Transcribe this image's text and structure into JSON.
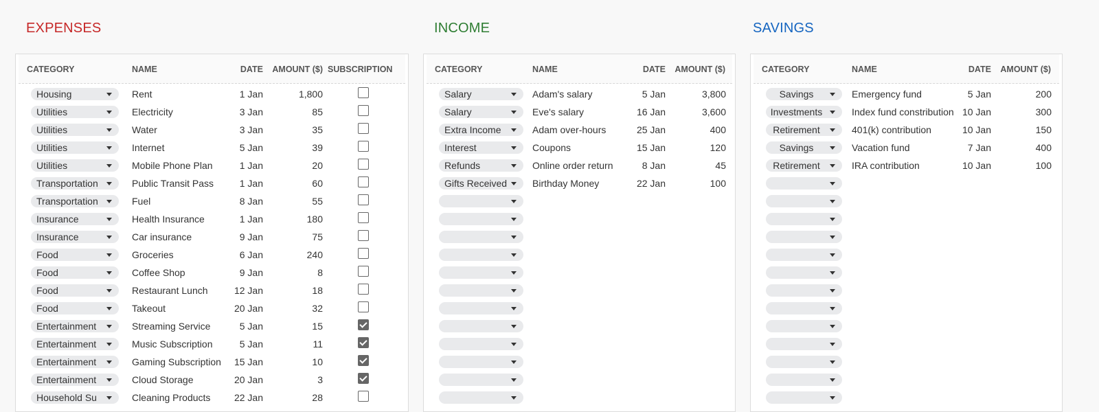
{
  "colors": {
    "expenses": "#c62828",
    "income": "#2e7d32",
    "savings": "#1565c0"
  },
  "expenses": {
    "title": "EXPENSES",
    "headers": {
      "category": "CATEGORY",
      "name": "NAME",
      "date": "DATE",
      "amount": "AMOUNT ($)",
      "subscription": "SUBSCRIPTION"
    },
    "rows": [
      {
        "category": "Housing",
        "name": "Rent",
        "date": "1 Jan",
        "amount": "1,800",
        "subscription": false
      },
      {
        "category": "Utilities",
        "name": "Electricity",
        "date": "3 Jan",
        "amount": "85",
        "subscription": false
      },
      {
        "category": "Utilities",
        "name": "Water",
        "date": "3 Jan",
        "amount": "35",
        "subscription": false
      },
      {
        "category": "Utilities",
        "name": "Internet",
        "date": "5 Jan",
        "amount": "39",
        "subscription": false
      },
      {
        "category": "Utilities",
        "name": "Mobile Phone Plan",
        "date": "1 Jan",
        "amount": "20",
        "subscription": false
      },
      {
        "category": "Transportation",
        "name": "Public Transit Pass",
        "date": "1 Jan",
        "amount": "60",
        "subscription": false
      },
      {
        "category": "Transportation",
        "name": "Fuel",
        "date": "8 Jan",
        "amount": "55",
        "subscription": false
      },
      {
        "category": "Insurance",
        "name": "Health Insurance",
        "date": "1 Jan",
        "amount": "180",
        "subscription": false
      },
      {
        "category": "Insurance",
        "name": "Car insurance",
        "date": "9 Jan",
        "amount": "75",
        "subscription": false
      },
      {
        "category": "Food",
        "name": "Groceries",
        "date": "6 Jan",
        "amount": "240",
        "subscription": false
      },
      {
        "category": "Food",
        "name": "Coffee Shop",
        "date": "9 Jan",
        "amount": "8",
        "subscription": false
      },
      {
        "category": "Food",
        "name": "Restaurant Lunch",
        "date": "12 Jan",
        "amount": "18",
        "subscription": false
      },
      {
        "category": "Food",
        "name": "Takeout",
        "date": "20 Jan",
        "amount": "32",
        "subscription": false
      },
      {
        "category": "Entertainment",
        "name": "Streaming Service",
        "date": "5 Jan",
        "amount": "15",
        "subscription": true
      },
      {
        "category": "Entertainment",
        "name": "Music Subscription",
        "date": "5 Jan",
        "amount": "11",
        "subscription": true
      },
      {
        "category": "Entertainment",
        "name": "Gaming Subscription",
        "date": "15 Jan",
        "amount": "10",
        "subscription": true
      },
      {
        "category": "Entertainment",
        "name": "Cloud Storage",
        "date": "20 Jan",
        "amount": "3",
        "subscription": true
      },
      {
        "category": "Household Su",
        "name": "Cleaning Products",
        "date": "22 Jan",
        "amount": "28",
        "subscription": false
      }
    ]
  },
  "income": {
    "title": "INCOME",
    "headers": {
      "category": "CATEGORY",
      "name": "NAME",
      "date": "DATE",
      "amount": "AMOUNT ($)"
    },
    "rows": [
      {
        "category": "Salary",
        "name": "Adam's salary",
        "date": "5 Jan",
        "amount": "3,800"
      },
      {
        "category": "Salary",
        "name": "Eve's salary",
        "date": "16 Jan",
        "amount": "3,600"
      },
      {
        "category": "Extra Income",
        "name": "Adam over-hours",
        "date": "25 Jan",
        "amount": "400"
      },
      {
        "category": "Interest",
        "name": "Coupons",
        "date": "15 Jan",
        "amount": "120"
      },
      {
        "category": "Refunds",
        "name": "Online order return",
        "date": "8 Jan",
        "amount": "45"
      },
      {
        "category": "Gifts Received",
        "name": "Birthday Money",
        "date": "22 Jan",
        "amount": "100"
      },
      {},
      {},
      {},
      {},
      {},
      {},
      {},
      {},
      {},
      {},
      {},
      {}
    ]
  },
  "savings": {
    "title": "SAVINGS",
    "headers": {
      "category": "CATEGORY",
      "name": "NAME",
      "date": "DATE",
      "amount": "AMOUNT ($)"
    },
    "rows": [
      {
        "category": "Savings",
        "name": "Emergency fund",
        "date": "5 Jan",
        "amount": "200"
      },
      {
        "category": "Investments",
        "name": "Index fund constribution",
        "date": "10 Jan",
        "amount": "300"
      },
      {
        "category": "Retirement",
        "name": "401(k) contribution",
        "date": "10 Jan",
        "amount": "150"
      },
      {
        "category": "Savings",
        "name": "Vacation fund",
        "date": "7 Jan",
        "amount": "400"
      },
      {
        "category": "Retirement",
        "name": "IRA contribution",
        "date": "10 Jan",
        "amount": "100"
      },
      {},
      {},
      {},
      {},
      {},
      {},
      {},
      {},
      {},
      {},
      {},
      {},
      {}
    ]
  }
}
